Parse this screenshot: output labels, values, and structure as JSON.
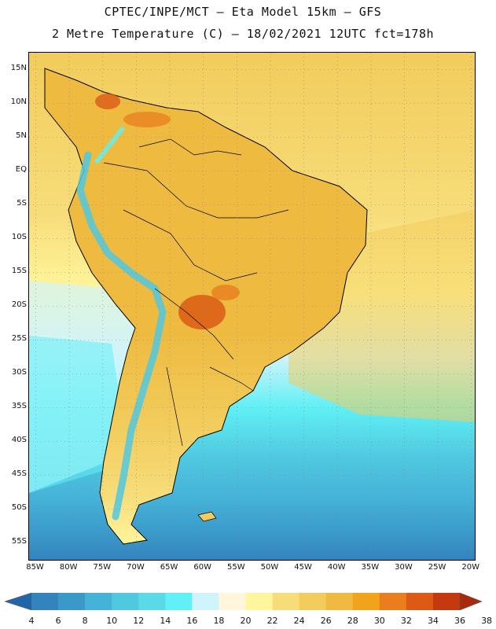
{
  "header": {
    "line1": "CPTEC/INPE/MCT –  Eta Model 15km – GFS",
    "line2": "2 Metre Temperature (C) – 18/02/2021 12UTC fct=178h"
  },
  "map": {
    "region": "South America",
    "variable": "2 Metre Temperature (C)",
    "lat_labels": [
      "15N",
      "10N",
      "5N",
      "EQ",
      "5S",
      "10S",
      "15S",
      "20S",
      "25S",
      "30S",
      "35S",
      "40S",
      "45S",
      "50S",
      "55S"
    ],
    "lon_labels": [
      "85W",
      "80W",
      "75W",
      "70W",
      "65W",
      "60W",
      "55W",
      "50W",
      "45W",
      "40W",
      "35W",
      "30W",
      "25W",
      "20W"
    ],
    "lat_range": [
      17.5,
      -57.5
    ],
    "lon_range": [
      -86,
      -19.5
    ]
  },
  "colorbar": {
    "labels": [
      "4",
      "6",
      "8",
      "10",
      "12",
      "14",
      "16",
      "18",
      "20",
      "22",
      "24",
      "26",
      "28",
      "30",
      "32",
      "34",
      "36",
      "38"
    ],
    "colors": [
      "#2166a8",
      "#3383bd",
      "#3a99c9",
      "#45b2d8",
      "#50c8e0",
      "#5ad9e6",
      "#60f0f5",
      "#d0f4fb",
      "#fff6dc",
      "#fff59c",
      "#f7dd7a",
      "#f2cc5c",
      "#eeba3f",
      "#f0a31b",
      "#ea7e1f",
      "#dc5a15",
      "#c43a0e",
      "#a8290c"
    ]
  },
  "colors": {
    "ocean_far": "#3383bd",
    "ocean_mid": "#45b2d8",
    "ocean_near": "#5ad9e6",
    "ocean_warm": "#f7dd7a",
    "land_base": "#eeba3f",
    "land_hot": "#dc5a15",
    "andes": "#50c8e0"
  }
}
